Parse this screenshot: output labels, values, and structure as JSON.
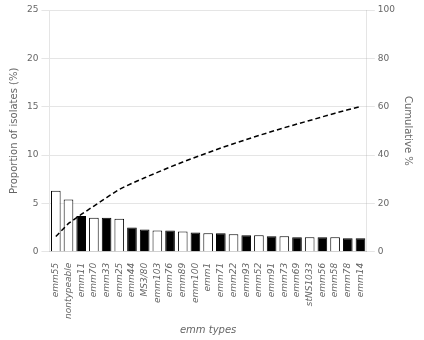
{
  "chart_data": {
    "type": "bar",
    "xlabel": "emm types",
    "ylabel": "Proportion of isolates (%)",
    "y2label": "Cumulative %",
    "categories": [
      "emm55",
      "nontypeable",
      "emm11",
      "emm70",
      "emm33",
      "emm25",
      "emm44",
      "MS3/80",
      "emm103",
      "emm76",
      "emm89",
      "emm100",
      "emm1",
      "emm71",
      "emm22",
      "emm93",
      "emm52",
      "emm91",
      "emm73",
      "emm69",
      "stNS1033",
      "emm56",
      "emm58",
      "emm78",
      "emm14"
    ],
    "series": [
      {
        "type": "bar",
        "colors": [
          "white",
          "white",
          "black",
          "white",
          "black",
          "white",
          "black",
          "black",
          "white",
          "black",
          "white",
          "black",
          "white",
          "black",
          "white",
          "black",
          "white",
          "black",
          "white",
          "black",
          "white",
          "black",
          "white",
          "black",
          "black"
        ],
        "values": [
          6.3,
          5.4,
          3.7,
          3.5,
          3.5,
          3.4,
          2.5,
          2.3,
          2.2,
          2.2,
          2.1,
          2.0,
          1.9,
          1.9,
          1.8,
          1.7,
          1.7,
          1.6,
          1.6,
          1.5,
          1.5,
          1.5,
          1.5,
          1.4,
          1.4
        ]
      },
      {
        "type": "line",
        "axis": "y2",
        "color": "black",
        "line_style": "dashed",
        "marker": "none",
        "values": [
          6.3,
          11.7,
          15.4,
          18.9,
          22.4,
          25.8,
          28.3,
          30.6,
          32.8,
          35.0,
          37.1,
          39.1,
          41.0,
          42.9,
          44.7,
          46.4,
          48.1,
          49.7,
          51.3,
          52.8,
          54.3,
          55.8,
          57.3,
          58.7,
          60.1
        ]
      }
    ],
    "ylim": [
      0,
      25
    ],
    "yticks": [
      0,
      5,
      10,
      15,
      20,
      25
    ],
    "y2lim": [
      0,
      100
    ],
    "y2ticks": [
      0,
      20,
      40,
      60,
      80,
      100
    ],
    "grid": true
  }
}
